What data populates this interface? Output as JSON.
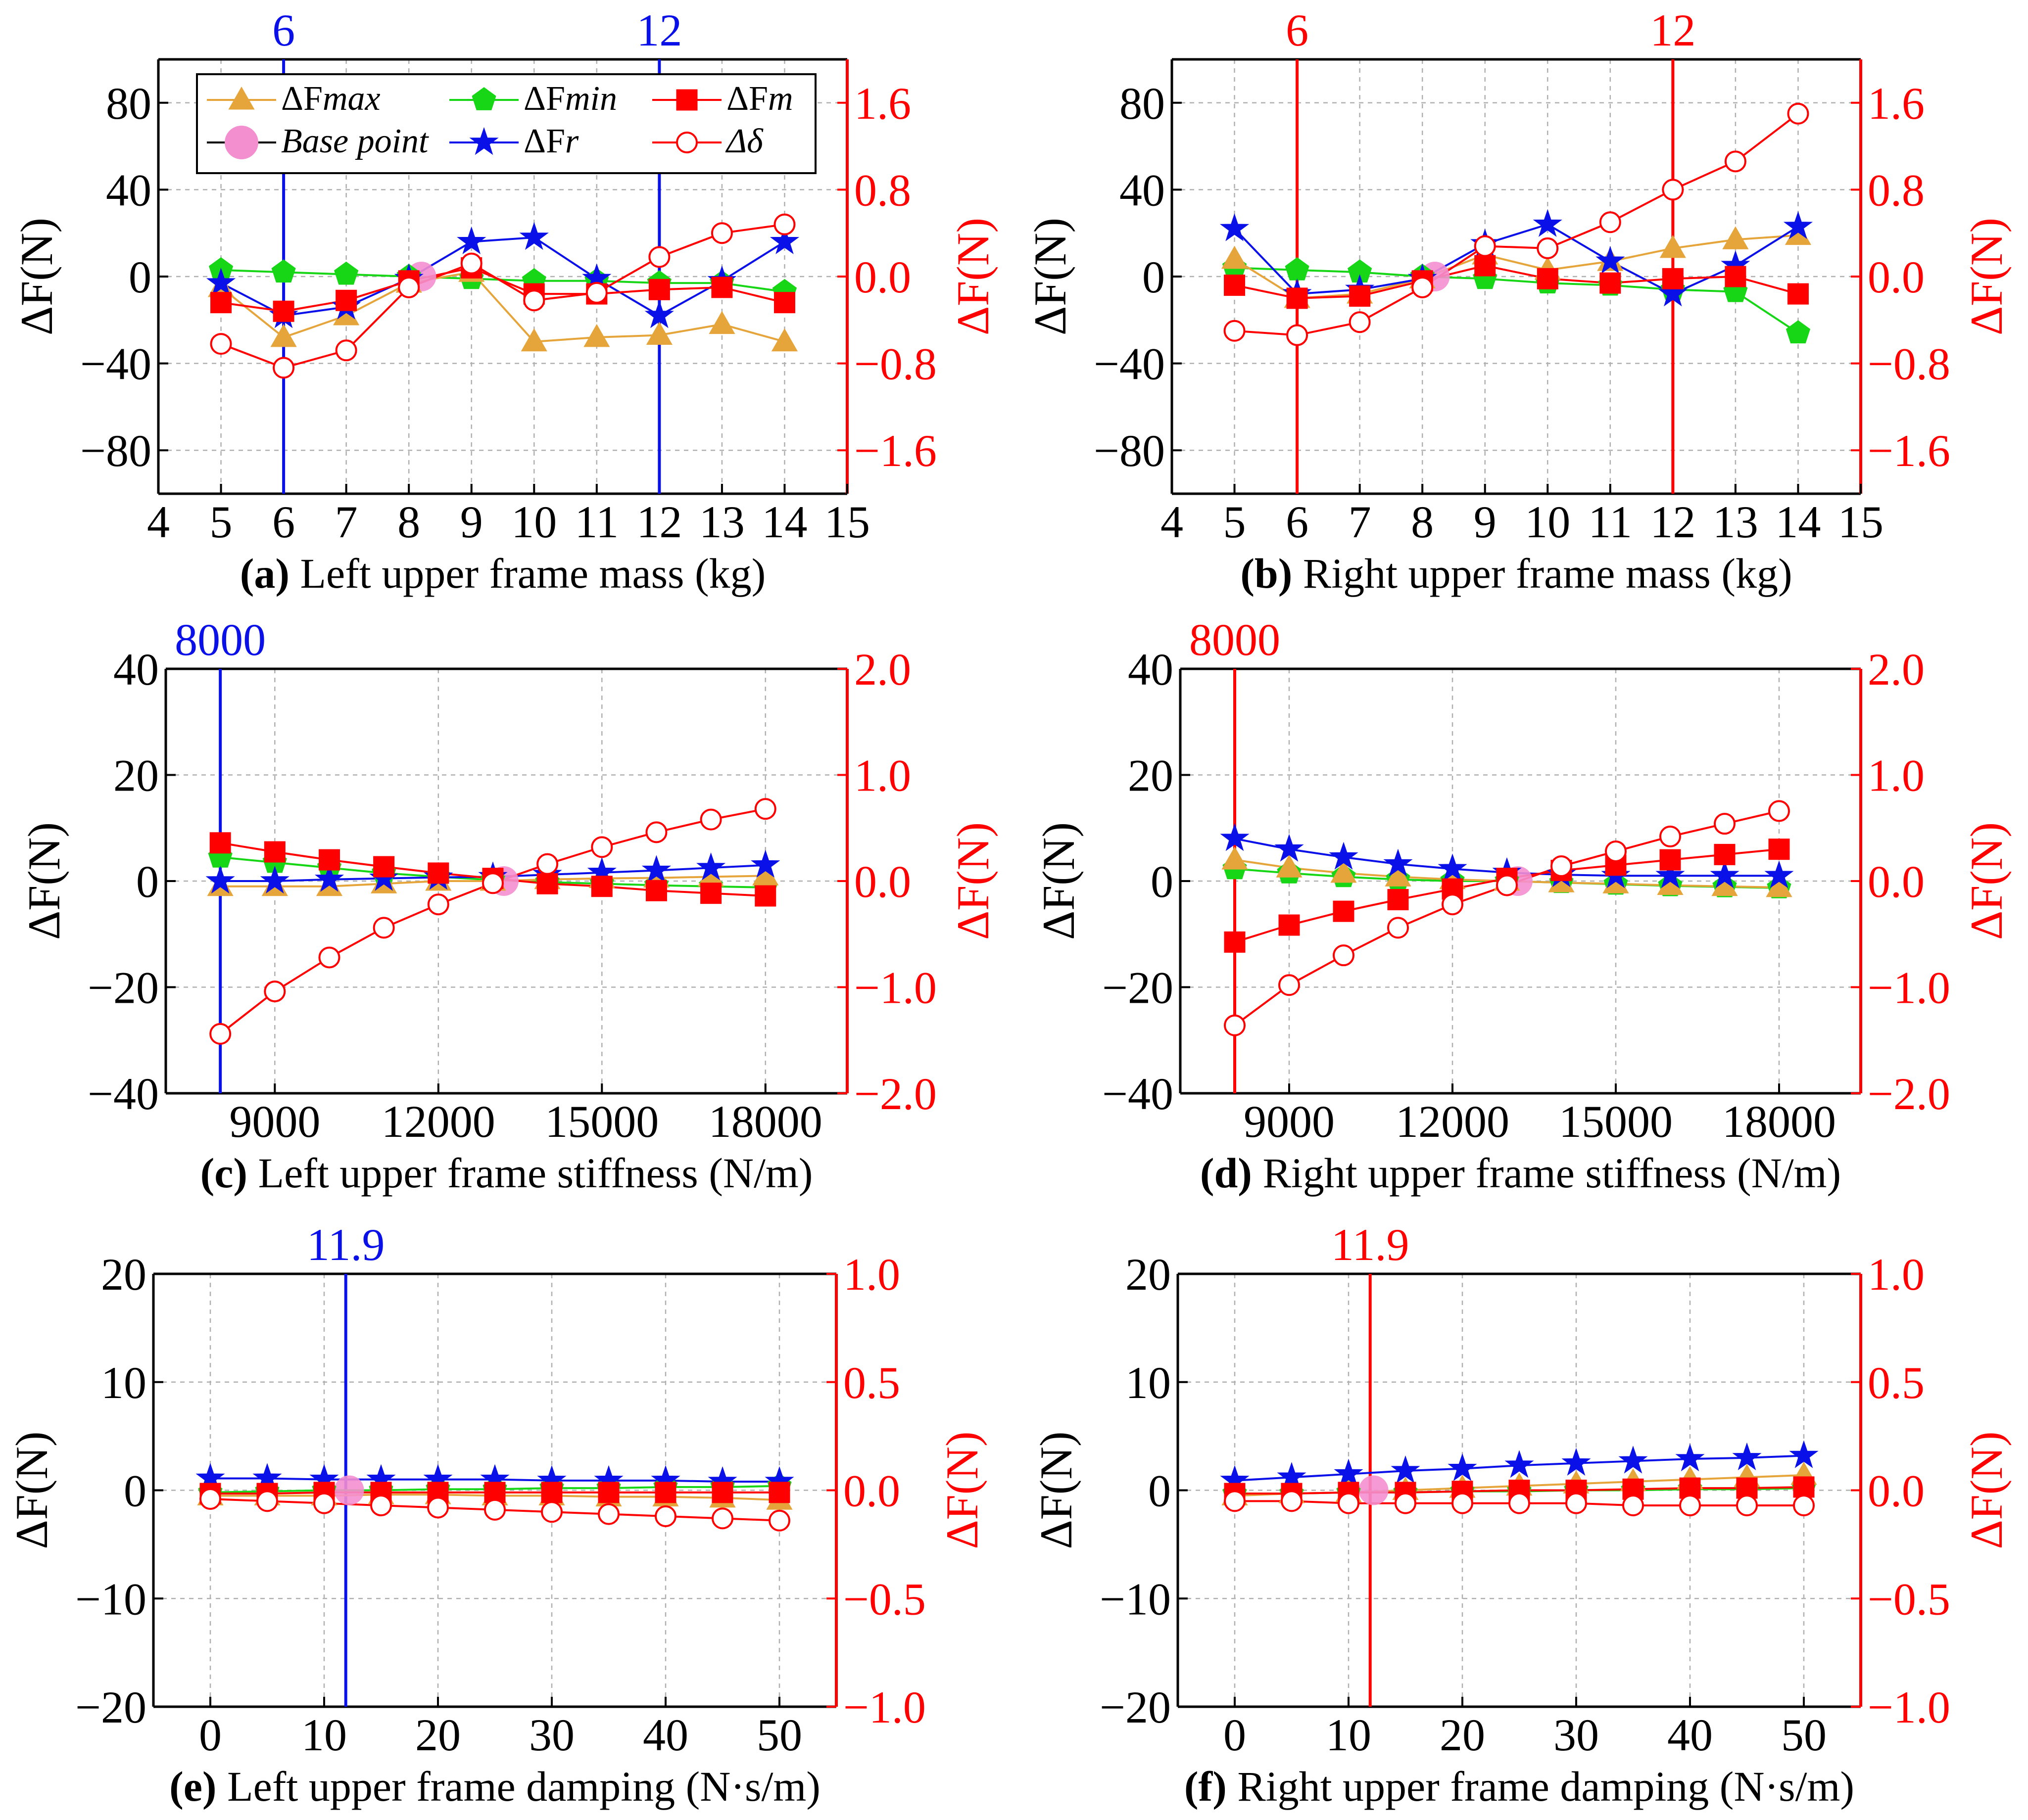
{
  "colors": {
    "dFmax": "#e5a53b",
    "dFmin": "#16d616",
    "dFm": "#ff0000",
    "base": "#f48fcf",
    "dFr": "#0a10e8",
    "dDelta": "#ff0000",
    "right_axis": "#ff0000",
    "blue_marker": "#0a10e8"
  },
  "legend": {
    "dFmax": "ΔFmax",
    "dFmin": "ΔFmin",
    "dFm": "ΔFm",
    "base": "Base point",
    "dFr": "ΔFr",
    "dDelta": "Δδ"
  },
  "chart_data": [
    {
      "id": "a",
      "type": "line",
      "caption_letter": "(a)",
      "caption_text": " Left upper frame mass (kg)",
      "ylabel_left": "ΔF(N)",
      "ylabel_right": "ΔF(N)",
      "xlim": [
        4,
        15
      ],
      "xticks": [
        4,
        5,
        6,
        7,
        8,
        9,
        10,
        11,
        12,
        13,
        14,
        15
      ],
      "ylim": [
        -100,
        100
      ],
      "yticks": [
        -80,
        -40,
        0,
        40,
        80
      ],
      "ytick_labels": [
        "−80",
        "−40",
        "0",
        "40",
        "80"
      ],
      "ylim_right": [
        -2.0,
        2.0
      ],
      "yticks_right": [
        -1.6,
        -0.8,
        0,
        0.8,
        1.6
      ],
      "ytick_labels_right": [
        "−1.6",
        "−0.8",
        "0.0",
        "0.8",
        "1.6"
      ],
      "x": [
        5,
        6,
        7,
        8,
        9,
        10,
        11,
        12,
        13,
        14
      ],
      "dFmax": [
        -5,
        -28,
        -18,
        -3,
        2,
        -30,
        -28,
        -27,
        -22,
        -30
      ],
      "dFmin": [
        3,
        2,
        1,
        0,
        -1,
        -2,
        -2,
        -3,
        -3,
        -7
      ],
      "dFm": [
        -12,
        -16,
        -11,
        -2,
        4,
        -8,
        -8,
        -6,
        -5,
        -12
      ],
      "dFr": [
        -3,
        -18,
        -14,
        -1,
        16,
        18,
        -1,
        -18,
        -2,
        16
      ],
      "dDelta": [
        -0.62,
        -0.84,
        -0.68,
        -0.1,
        0.12,
        -0.22,
        -0.15,
        0.18,
        0.4,
        0.48
      ],
      "base": {
        "x": 8.2,
        "y": 0
      },
      "markers": [
        {
          "x": 6,
          "label": "6"
        },
        {
          "x": 12,
          "label": "12"
        }
      ],
      "marker_color": "blue",
      "legend_show": true
    },
    {
      "id": "b",
      "type": "line",
      "caption_letter": "(b)",
      "caption_text": " Right upper frame mass (kg)",
      "ylabel_left": "ΔF(N)",
      "ylabel_right": "ΔF(N)",
      "xlim": [
        4,
        15
      ],
      "xticks": [
        4,
        5,
        6,
        7,
        8,
        9,
        10,
        11,
        12,
        13,
        14,
        15
      ],
      "ylim": [
        -100,
        100
      ],
      "yticks": [
        -80,
        -40,
        0,
        40,
        80
      ],
      "ytick_labels": [
        "−80",
        "−40",
        "0",
        "40",
        "80"
      ],
      "ylim_right": [
        -2.0,
        2.0
      ],
      "yticks_right": [
        -1.6,
        -0.8,
        0,
        0.8,
        1.6
      ],
      "ytick_labels_right": [
        "−1.6",
        "−0.8",
        "0.0",
        "0.8",
        "1.6"
      ],
      "x": [
        5,
        6,
        7,
        8,
        9,
        10,
        11,
        12,
        13,
        14
      ],
      "dFmax": [
        8,
        -10,
        -8,
        -1,
        10,
        3,
        7,
        13,
        17,
        19
      ],
      "dFmin": [
        4,
        3,
        2,
        0,
        -1,
        -3,
        -4,
        -6,
        -7,
        -26
      ],
      "dFm": [
        -4,
        -10,
        -9,
        -2,
        5,
        -1,
        -3,
        -1,
        0,
        -8
      ],
      "dFr": [
        22,
        -8,
        -6,
        -1,
        15,
        24,
        7,
        -8,
        5,
        23
      ],
      "dDelta": [
        -0.5,
        -0.54,
        -0.42,
        -0.1,
        0.28,
        0.26,
        0.5,
        0.8,
        1.06,
        1.5
      ],
      "base": {
        "x": 8.2,
        "y": 0
      },
      "markers": [
        {
          "x": 6,
          "label": "6"
        },
        {
          "x": 12,
          "label": "12"
        }
      ],
      "marker_color": "red",
      "legend_show": false
    },
    {
      "id": "c",
      "type": "line",
      "caption_letter": "(c)",
      "caption_text": " Left upper frame stiffness (N/m)",
      "ylabel_left": "ΔF(N)",
      "ylabel_right": "ΔF(N)",
      "xlim": [
        7000,
        19500
      ],
      "xticks": [
        9000,
        12000,
        15000,
        18000
      ],
      "ylim": [
        -40,
        40
      ],
      "yticks": [
        -40,
        -20,
        0,
        20,
        40
      ],
      "ytick_labels": [
        "−40",
        "−20",
        "0",
        "20",
        "40"
      ],
      "ylim_right": [
        -2.0,
        2.0
      ],
      "yticks_right": [
        -2.0,
        -1.0,
        0,
        1.0,
        2.0
      ],
      "ytick_labels_right": [
        "−2.0",
        "−1.0",
        "0.0",
        "1.0",
        "2.0"
      ],
      "x": [
        8000,
        9000,
        10000,
        11000,
        12000,
        13000,
        14000,
        15000,
        16000,
        17000,
        18000
      ],
      "dFmax": [
        -1,
        -1,
        -1,
        -0.5,
        0,
        0,
        0.3,
        0.5,
        0.6,
        0.8,
        1
      ],
      "dFmin": [
        4.5,
        3.5,
        2.5,
        1.5,
        0.8,
        0.2,
        -0.2,
        -0.5,
        -0.8,
        -1,
        -1.2
      ],
      "dFm": [
        7.2,
        5.5,
        4,
        2.7,
        1.5,
        0.5,
        -0.5,
        -1,
        -1.8,
        -2.3,
        -2.8
      ],
      "dFr": [
        0,
        0,
        0.3,
        0.5,
        0.7,
        0.8,
        1.2,
        1.6,
        2,
        2.5,
        3
      ],
      "dDelta": [
        -1.44,
        -1.04,
        -0.72,
        -0.44,
        -0.22,
        -0.02,
        0.16,
        0.32,
        0.46,
        0.58,
        0.68
      ],
      "base": {
        "x": 13200,
        "y": 0
      },
      "markers": [
        {
          "x": 8000,
          "label": "8000"
        }
      ],
      "marker_color": "blue",
      "legend_show": false
    },
    {
      "id": "d",
      "type": "line",
      "caption_letter": "(d)",
      "caption_text": " Right upper frame stiffness (N/m)",
      "ylabel_left": "ΔF(N)",
      "ylabel_right": "ΔF(N)",
      "xlim": [
        7000,
        19500
      ],
      "xticks": [
        9000,
        12000,
        15000,
        18000
      ],
      "ylim": [
        -40,
        40
      ],
      "yticks": [
        -40,
        -20,
        0,
        20,
        40
      ],
      "ytick_labels": [
        "−40",
        "−20",
        "0",
        "20",
        "40"
      ],
      "ylim_right": [
        -2.0,
        2.0
      ],
      "yticks_right": [
        -2.0,
        -1.0,
        0,
        1.0,
        2.0
      ],
      "ytick_labels_right": [
        "−2.0",
        "−1.0",
        "0.0",
        "1.0",
        "2.0"
      ],
      "x": [
        8000,
        9000,
        10000,
        11000,
        12000,
        13000,
        14000,
        15000,
        16000,
        17000,
        18000
      ],
      "dFmax": [
        4,
        2.5,
        1.5,
        0.8,
        0.3,
        0,
        -0.3,
        -0.5,
        -0.8,
        -1,
        -1.2
      ],
      "dFmin": [
        2.3,
        1.5,
        0.8,
        0.3,
        0,
        0,
        -0.3,
        -0.6,
        -0.9,
        -1.1,
        -1.3
      ],
      "dFm": [
        -11.5,
        -8.3,
        -5.7,
        -3.5,
        -1.5,
        0.5,
        2,
        3,
        4,
        5,
        6
      ],
      "dFr": [
        8,
        6,
        4.5,
        3.2,
        2.3,
        1.6,
        1.2,
        1,
        1,
        1,
        1
      ],
      "dDelta": [
        -1.36,
        -0.98,
        -0.7,
        -0.44,
        -0.22,
        -0.04,
        0.14,
        0.28,
        0.42,
        0.54,
        0.66
      ],
      "base": {
        "x": 13200,
        "y": 0
      },
      "markers": [
        {
          "x": 8000,
          "label": "8000"
        }
      ],
      "marker_color": "red",
      "legend_show": false
    },
    {
      "id": "e",
      "type": "line",
      "caption_letter": "(e)",
      "caption_text": " Left upper frame damping (N·s/m)",
      "ylabel_left": "ΔF(N)",
      "ylabel_right": "ΔF(N)",
      "xlim": [
        -5,
        55
      ],
      "xticks": [
        0,
        10,
        20,
        30,
        40,
        50
      ],
      "ylim": [
        -20,
        20
      ],
      "yticks": [
        -20,
        -10,
        0,
        10,
        20
      ],
      "ytick_labels": [
        "−20",
        "−10",
        "0",
        "10",
        "20"
      ],
      "ylim_right": [
        -1.0,
        1.0
      ],
      "yticks_right": [
        -1.0,
        -0.5,
        0,
        0.5,
        1.0
      ],
      "ytick_labels_right": [
        "−1.0",
        "−0.5",
        "0.0",
        "0.5",
        "1.0"
      ],
      "x": [
        0,
        5,
        10,
        15,
        20,
        25,
        30,
        35,
        40,
        45,
        50
      ],
      "dFmax": [
        -0.5,
        -0.5,
        -0.5,
        -0.4,
        -0.4,
        -0.5,
        -0.5,
        -0.6,
        -0.6,
        -0.7,
        -0.9
      ],
      "dFmin": [
        -0.2,
        -0.1,
        0,
        0,
        0.1,
        0.1,
        0.2,
        0.2,
        0.3,
        0.3,
        0.4
      ],
      "dFm": [
        -0.3,
        -0.3,
        -0.2,
        -0.2,
        -0.2,
        -0.2,
        -0.2,
        -0.2,
        -0.2,
        -0.2,
        -0.2
      ],
      "dFr": [
        1.1,
        1.1,
        1,
        1,
        1,
        1,
        0.9,
        0.9,
        0.9,
        0.8,
        0.8
      ],
      "dDelta": [
        -0.04,
        -0.05,
        -0.06,
        -0.07,
        -0.08,
        -0.09,
        -0.1,
        -0.11,
        -0.12,
        -0.13,
        -0.14
      ],
      "base": {
        "x": 12.2,
        "y": 0
      },
      "markers": [
        {
          "x": 11.9,
          "label": "11.9"
        }
      ],
      "marker_color": "blue",
      "legend_show": false
    },
    {
      "id": "f",
      "type": "line",
      "caption_letter": "(f)",
      "caption_text": " Right upper frame damping (N·s/m)",
      "ylabel_left": "ΔF(N)",
      "ylabel_right": "ΔF(N)",
      "xlim": [
        -5,
        55
      ],
      "xticks": [
        0,
        10,
        20,
        30,
        40,
        50
      ],
      "ylim": [
        -20,
        20
      ],
      "yticks": [
        -20,
        -10,
        0,
        10,
        20
      ],
      "ytick_labels": [
        "−20",
        "−10",
        "0",
        "10",
        "20"
      ],
      "ylim_right": [
        -1.0,
        1.0
      ],
      "yticks_right": [
        -1.0,
        -0.5,
        0,
        0.5,
        1.0
      ],
      "ytick_labels_right": [
        "−1.0",
        "−0.5",
        "0.0",
        "0.5",
        "1.0"
      ],
      "x": [
        0,
        5,
        10,
        15,
        20,
        25,
        30,
        35,
        40,
        45,
        50
      ],
      "dFmax": [
        -0.5,
        -0.3,
        -0.2,
        0,
        0.2,
        0.4,
        0.6,
        0.8,
        1,
        1.2,
        1.4
      ],
      "dFmin": [
        -0.3,
        -0.3,
        -0.2,
        -0.2,
        -0.1,
        -0.1,
        0,
        0,
        0.1,
        0.1,
        0.2
      ],
      "dFm": [
        -0.3,
        -0.3,
        -0.2,
        -0.2,
        -0.1,
        0,
        0,
        0.1,
        0.2,
        0.2,
        0.3
      ],
      "dFr": [
        0.9,
        1.2,
        1.5,
        1.8,
        2,
        2.3,
        2.5,
        2.7,
        2.9,
        3,
        3.2
      ],
      "dDelta": [
        -0.05,
        -0.05,
        -0.06,
        -0.06,
        -0.06,
        -0.06,
        -0.06,
        -0.07,
        -0.07,
        -0.07,
        -0.07
      ],
      "base": {
        "x": 12.2,
        "y": 0
      },
      "markers": [
        {
          "x": 11.9,
          "label": "11.9"
        }
      ],
      "marker_color": "red",
      "legend_show": false
    }
  ]
}
